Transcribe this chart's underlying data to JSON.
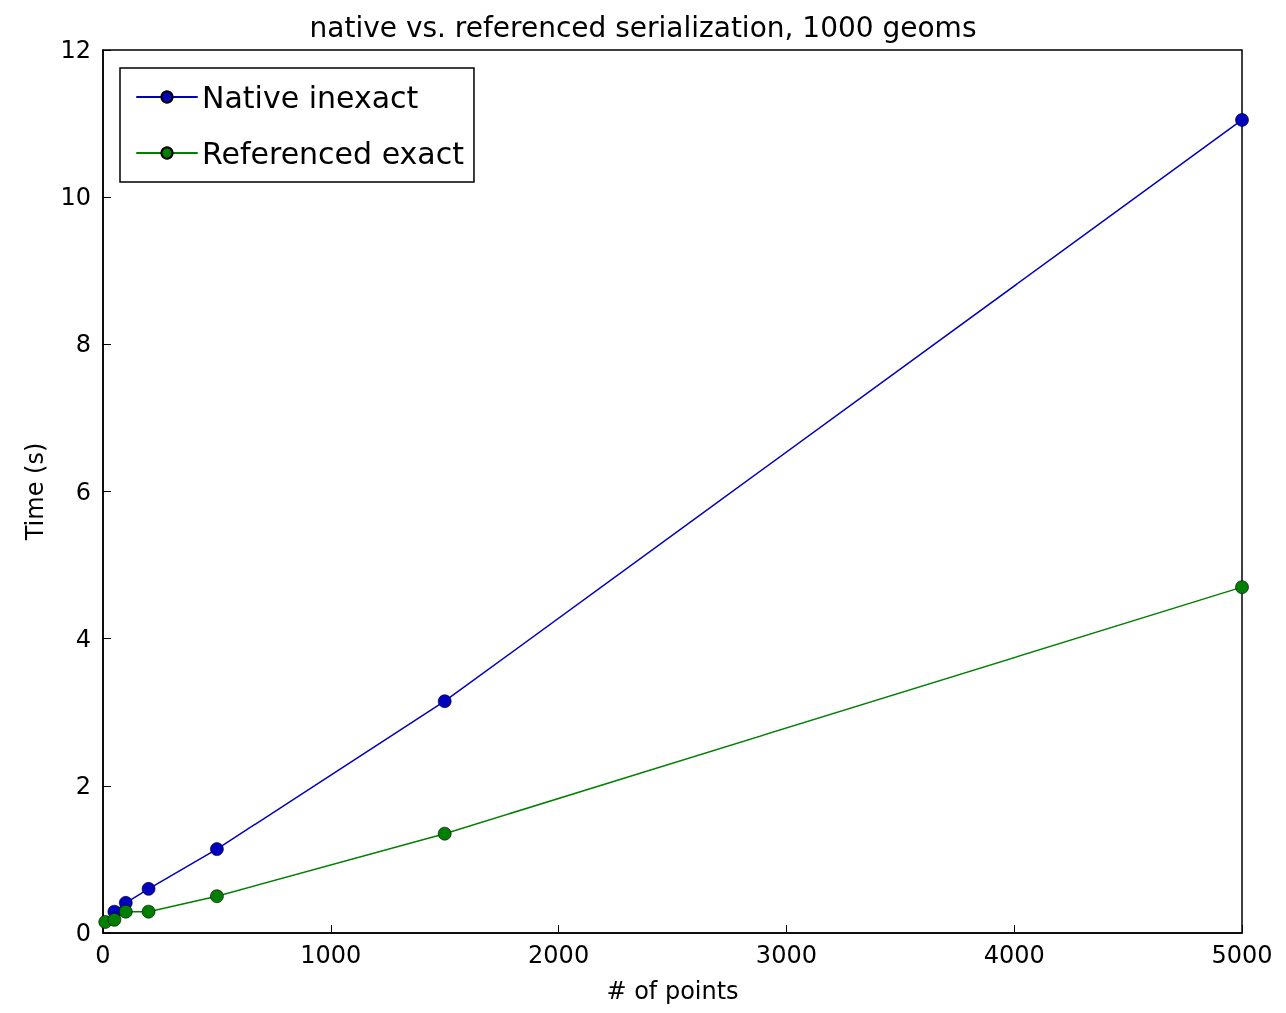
{
  "chart_data": {
    "type": "line",
    "title": "native vs. referenced serialization, 1000 geoms",
    "xlabel": "# of points",
    "ylabel": "Time (s)",
    "x": [
      10,
      50,
      100,
      200,
      500,
      1500,
      5000
    ],
    "series": [
      {
        "name": "Native inexact",
        "color": "#0000bf",
        "values": [
          null,
          0.29,
          0.41,
          0.6,
          1.14,
          3.15,
          11.05
        ]
      },
      {
        "name": "Referenced exact",
        "color": "#007f00",
        "values": [
          0.15,
          0.18,
          0.29,
          0.29,
          0.5,
          1.35,
          4.7
        ]
      }
    ],
    "xlim": [
      0,
      5000
    ],
    "xticks": [
      0,
      1000,
      2000,
      3000,
      4000,
      5000
    ],
    "ylim": [
      0,
      12
    ],
    "yticks": [
      0,
      2,
      4,
      6,
      8,
      10,
      12
    ],
    "grid": false,
    "legend": "top left",
    "marker": "circle",
    "line_style": "solid"
  }
}
